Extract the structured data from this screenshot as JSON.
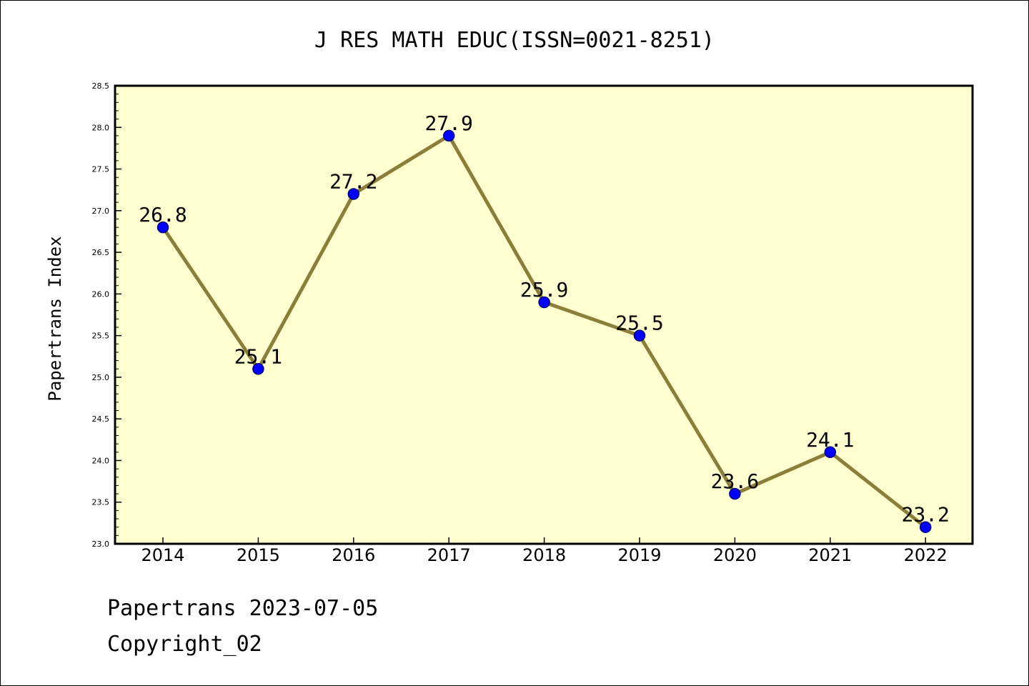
{
  "chart_data": {
    "type": "line",
    "title": "J RES MATH EDUC(ISSN=0021-8251)",
    "xlabel": "",
    "ylabel": "Papertrans Index",
    "categories": [
      "2014",
      "2015",
      "2016",
      "2017",
      "2018",
      "2019",
      "2020",
      "2021",
      "2022"
    ],
    "series": [
      {
        "values": [
          26.8,
          25.1,
          27.2,
          27.9,
          25.9,
          25.5,
          23.6,
          24.1,
          23.2
        ],
        "labels": [
          "26.8",
          "25.1",
          "27.2",
          "27.9",
          "25.9",
          "25.5",
          "23.6",
          "24.1",
          "23.2"
        ]
      }
    ],
    "ylim": [
      23.0,
      28.5
    ],
    "yticks": [
      "23.0",
      "23.5",
      "24.0",
      "24.5",
      "25.0",
      "25.5",
      "26.0",
      "26.5",
      "27.0",
      "27.5",
      "28.0",
      "28.5"
    ],
    "grid": false,
    "legend": "none",
    "colors": {
      "plot_background": "#ffffd0",
      "line": "#8b7d3a",
      "marker_fill": "#0000ff",
      "marker_edge": "#000080"
    }
  },
  "footer": {
    "line1": "Papertrans 2023-07-05",
    "line2": "Copyright_02"
  }
}
